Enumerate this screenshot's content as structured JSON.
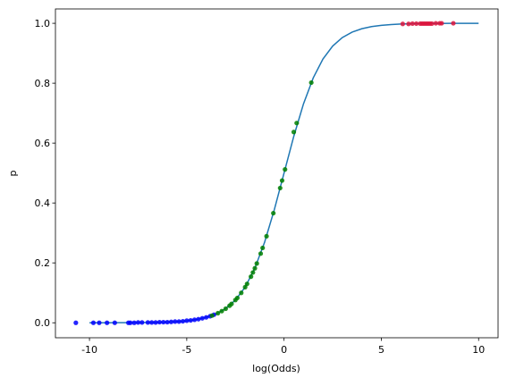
{
  "chart_data": {
    "type": "line",
    "xlabel": "log(Odds)",
    "ylabel": "p",
    "xlim": [
      -11.75,
      11.0
    ],
    "ylim": [
      -0.05,
      1.048
    ],
    "xticks": [
      -10,
      -5,
      0,
      5,
      10
    ],
    "yticks": [
      {
        "value": 0,
        "label": "0.0"
      },
      0.2,
      0.4,
      0.6,
      0.8,
      {
        "value": 1,
        "label": "1.0"
      }
    ],
    "grid": false,
    "series": [
      {
        "kind": "line",
        "color": "#1f77b4",
        "x": [
          -10,
          -9.5,
          -9,
          -8.5,
          -8,
          -7.5,
          -7,
          -6.5,
          -6,
          -5.5,
          -5,
          -4.5,
          -4,
          -3.5,
          -3,
          -2.5,
          -2,
          -1.5,
          -1,
          -0.5,
          0,
          0.5,
          1,
          1.5,
          2,
          2.5,
          3,
          3.5,
          4,
          4.5,
          5,
          5.5,
          6,
          6.5,
          7,
          7.5,
          8,
          8.5,
          9,
          9.5,
          10
        ],
        "values": [
          5e-05,
          7.5e-05,
          0.000123,
          0.000203,
          0.000335,
          0.000553,
          0.000911,
          0.0015,
          0.00247,
          0.00407,
          0.00669,
          0.011,
          0.018,
          0.0293,
          0.0474,
          0.0759,
          0.1192,
          0.1824,
          0.2689,
          0.3775,
          0.5,
          0.6225,
          0.7311,
          0.8176,
          0.8808,
          0.9241,
          0.9526,
          0.9707,
          0.982,
          0.989,
          0.9933,
          0.9959,
          0.9975,
          0.9985,
          0.9991,
          0.9994,
          0.9997,
          0.9998,
          0.9999,
          0.9999,
          1.0
        ]
      },
      {
        "kind": "scatter",
        "color": "blue",
        "x": [
          -10.7,
          -9.8,
          -9.5,
          -9.1,
          -8.7,
          -8.0,
          -7.9,
          -7.7,
          -7.5,
          -7.3,
          -7.0,
          -6.8,
          -6.6,
          -6.4,
          -6.2,
          -6.0,
          -5.8,
          -5.6,
          -5.4,
          -5.2,
          -5.0,
          -4.8,
          -4.6,
          -4.4,
          -4.2,
          -4.0,
          -3.8,
          -3.6
        ],
        "values": [
          0.0,
          0.0,
          0.0,
          0.0,
          0.0,
          0.0,
          0.0,
          0.0,
          0.001,
          0.001,
          0.001,
          0.001,
          0.001,
          0.002,
          0.002,
          0.002,
          0.003,
          0.004,
          0.004,
          0.005,
          0.007,
          0.008,
          0.01,
          0.012,
          0.015,
          0.018,
          0.022,
          0.027
        ]
      },
      {
        "kind": "scatter",
        "color": "green",
        "x": [
          -3.7,
          -3.4,
          -3.2,
          -3.0,
          -2.8,
          -2.7,
          -2.5,
          -2.4,
          -2.2,
          -2.0,
          -1.9,
          -1.7,
          -1.6,
          -1.5,
          -1.4,
          -1.2,
          -1.1,
          -0.9,
          -0.55,
          -0.2,
          -0.1,
          0.05,
          0.5,
          0.65,
          1.4
        ],
        "values": [
          0.024,
          0.032,
          0.039,
          0.047,
          0.057,
          0.063,
          0.076,
          0.083,
          0.1,
          0.119,
          0.13,
          0.154,
          0.168,
          0.182,
          0.198,
          0.231,
          0.25,
          0.289,
          0.366,
          0.45,
          0.475,
          0.512,
          0.637,
          0.667,
          0.802
        ]
      },
      {
        "kind": "scatter",
        "color": "crimson",
        "x": [
          6.1,
          6.4,
          6.6,
          6.8,
          7.0,
          7.1,
          7.2,
          7.3,
          7.4,
          7.5,
          7.6,
          7.8,
          8.0,
          8.1,
          8.7
        ],
        "values": [
          0.998,
          0.998,
          0.999,
          0.999,
          0.999,
          0.999,
          0.999,
          0.999,
          0.999,
          0.999,
          0.999,
          1.0,
          1.0,
          1.0,
          1.0
        ]
      }
    ]
  }
}
